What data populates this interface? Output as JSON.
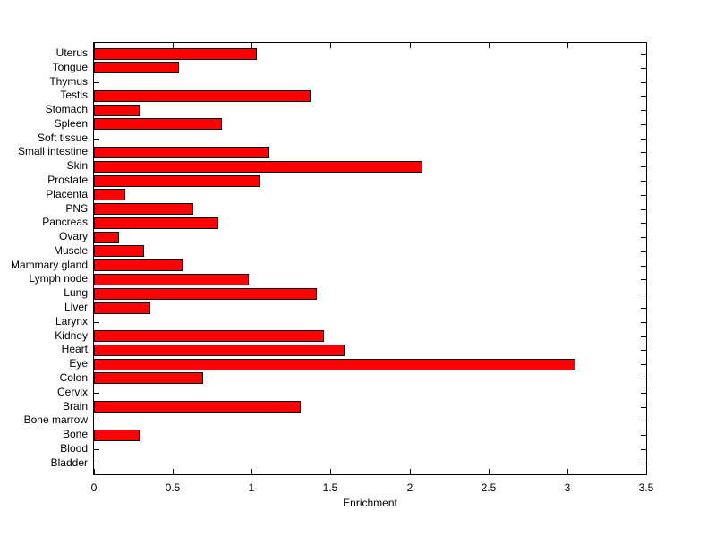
{
  "figure": {
    "background_color": "#ffffff",
    "text_color": "#000000"
  },
  "chart_data": {
    "type": "bar",
    "orientation": "horizontal",
    "title": "",
    "xlabel": "Enrichment",
    "ylabel": "",
    "xlim": [
      0,
      3.5
    ],
    "xtick_values": [
      0,
      0.5,
      1,
      1.5,
      2,
      2.5,
      3,
      3.5
    ],
    "xtick_labels": [
      "0",
      "0.5",
      "1",
      "1.5",
      "2",
      "2.5",
      "3",
      "3.5"
    ],
    "grid": false,
    "legend": "none",
    "bar_color": "#ff0000",
    "bar_edge_color": "#000000",
    "categories": [
      "Uterus",
      "Tongue",
      "Thymus",
      "Testis",
      "Stomach",
      "Spleen",
      "Soft tissue",
      "Small intestine",
      "Skin",
      "Prostate",
      "Placenta",
      "PNS",
      "Pancreas",
      "Ovary",
      "Muscle",
      "Mammary gland",
      "Lymph node",
      "Lung",
      "Liver",
      "Larynx",
      "Kidney",
      "Heart",
      "Eye",
      "Colon",
      "Cervix",
      "Brain",
      "Bone marrow",
      "Bone",
      "Blood",
      "Bladder"
    ],
    "values": [
      1.03,
      0.54,
      0,
      1.37,
      0.29,
      0.81,
      0,
      1.11,
      2.08,
      1.05,
      0.2,
      0.63,
      0.79,
      0.16,
      0.32,
      0.56,
      0.98,
      1.41,
      0.36,
      0,
      1.46,
      1.59,
      3.05,
      0.69,
      0,
      1.31,
      0,
      0.29,
      0,
      0
    ]
  }
}
